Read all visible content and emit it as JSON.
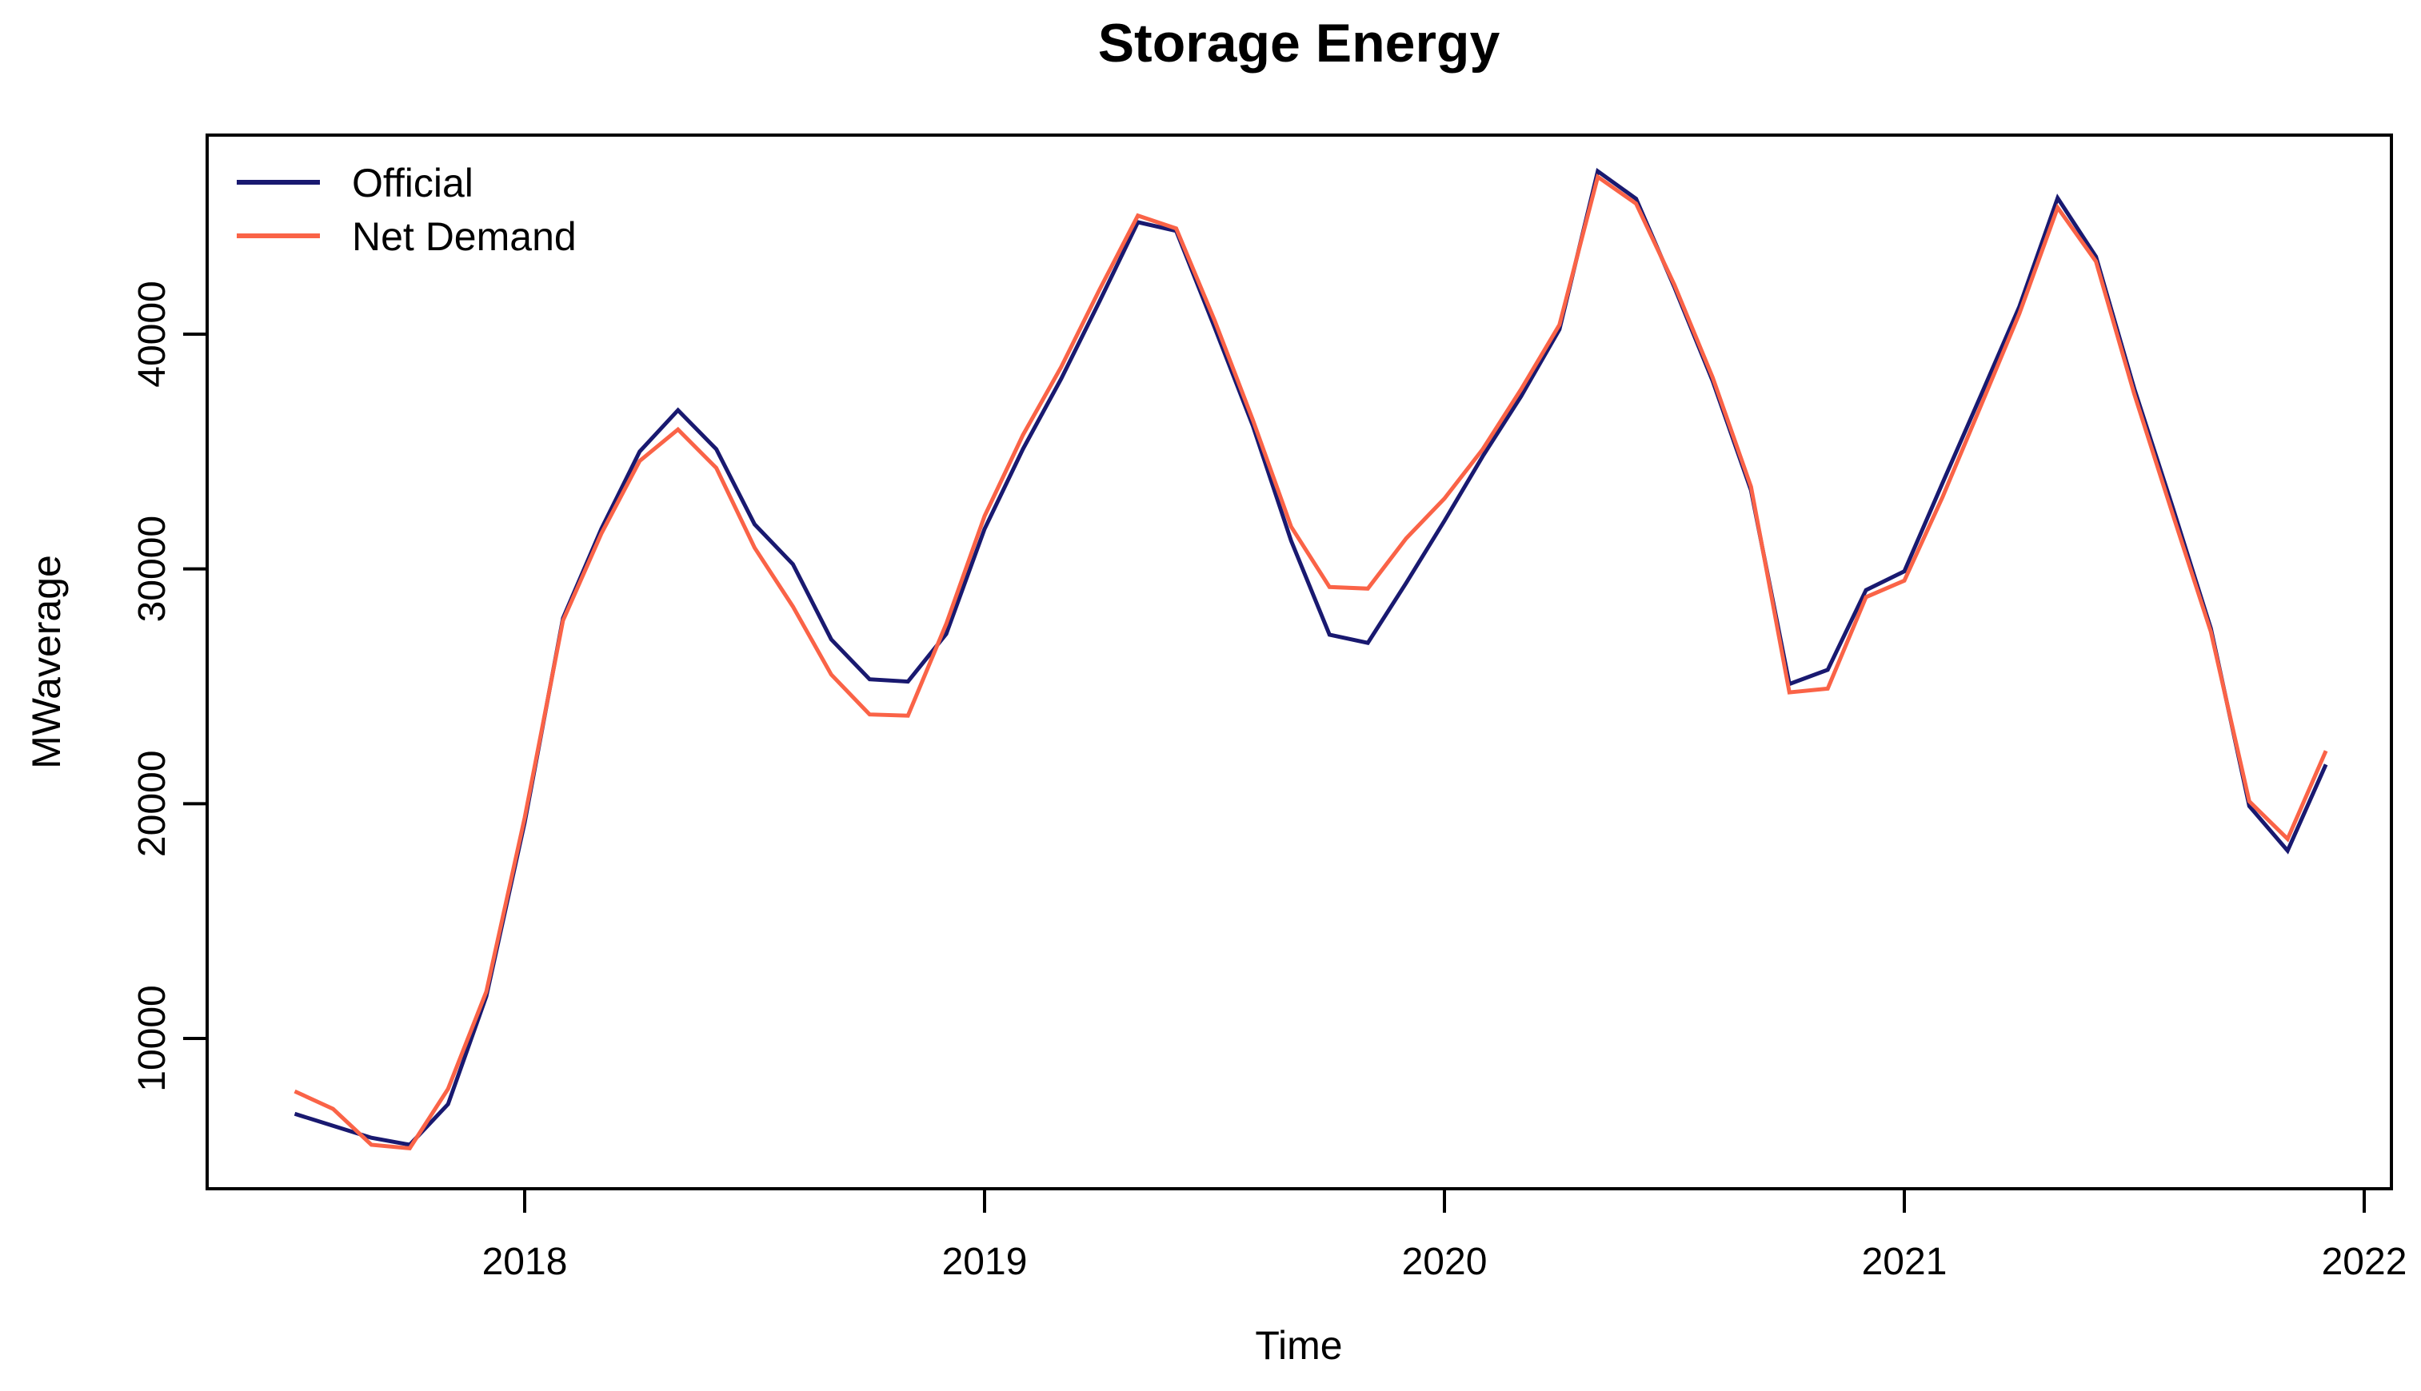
{
  "page": {
    "background_color": "#ffffff",
    "text_color": "#000000"
  },
  "chart_data": {
    "type": "line",
    "title": "Storage Energy",
    "xlabel": "Time",
    "ylabel": "MWaverage",
    "grid": false,
    "legend_position": "top-left",
    "x_ticks": [
      2018,
      2019,
      2020,
      2021,
      2022
    ],
    "y_ticks": [
      10000,
      20000,
      30000,
      40000
    ],
    "xlim": [
      2017.31,
      2022.06
    ],
    "ylim": [
      3600,
      48500
    ],
    "start": {
      "year": 2017,
      "month": 7
    },
    "frequency": 12,
    "series": [
      {
        "name": "Official",
        "color": "#191970",
        "values": [
          6790,
          6280,
          5770,
          5470,
          7200,
          11800,
          19200,
          27900,
          31700,
          35000,
          36760,
          35100,
          31900,
          30200,
          27000,
          25300,
          25200,
          27230,
          31700,
          35100,
          38100,
          41400,
          44770,
          44400,
          40300,
          36100,
          31200,
          27200,
          26850,
          29400,
          32050,
          34800,
          37350,
          40200,
          46940,
          45770,
          42000,
          38000,
          33350,
          25100,
          25700,
          29100,
          29900,
          33670,
          37400,
          41170,
          45800,
          43300,
          37680,
          32640,
          27460,
          19900,
          18000,
          21670
        ]
      },
      {
        "name": "Net Demand",
        "color": "#fa6347",
        "values": [
          7750,
          7000,
          5470,
          5320,
          7850,
          12000,
          19400,
          27800,
          31500,
          34600,
          35940,
          34300,
          30900,
          28400,
          25500,
          23800,
          23750,
          27660,
          32250,
          35700,
          38600,
          41900,
          45050,
          44500,
          40600,
          36350,
          31800,
          29230,
          29160,
          31300,
          33000,
          35100,
          37650,
          40400,
          46700,
          45560,
          42100,
          38150,
          33500,
          24740,
          24900,
          28800,
          29500,
          33070,
          36960,
          40870,
          45390,
          43100,
          37450,
          32350,
          27320,
          20100,
          18500,
          22250
        ]
      }
    ]
  }
}
